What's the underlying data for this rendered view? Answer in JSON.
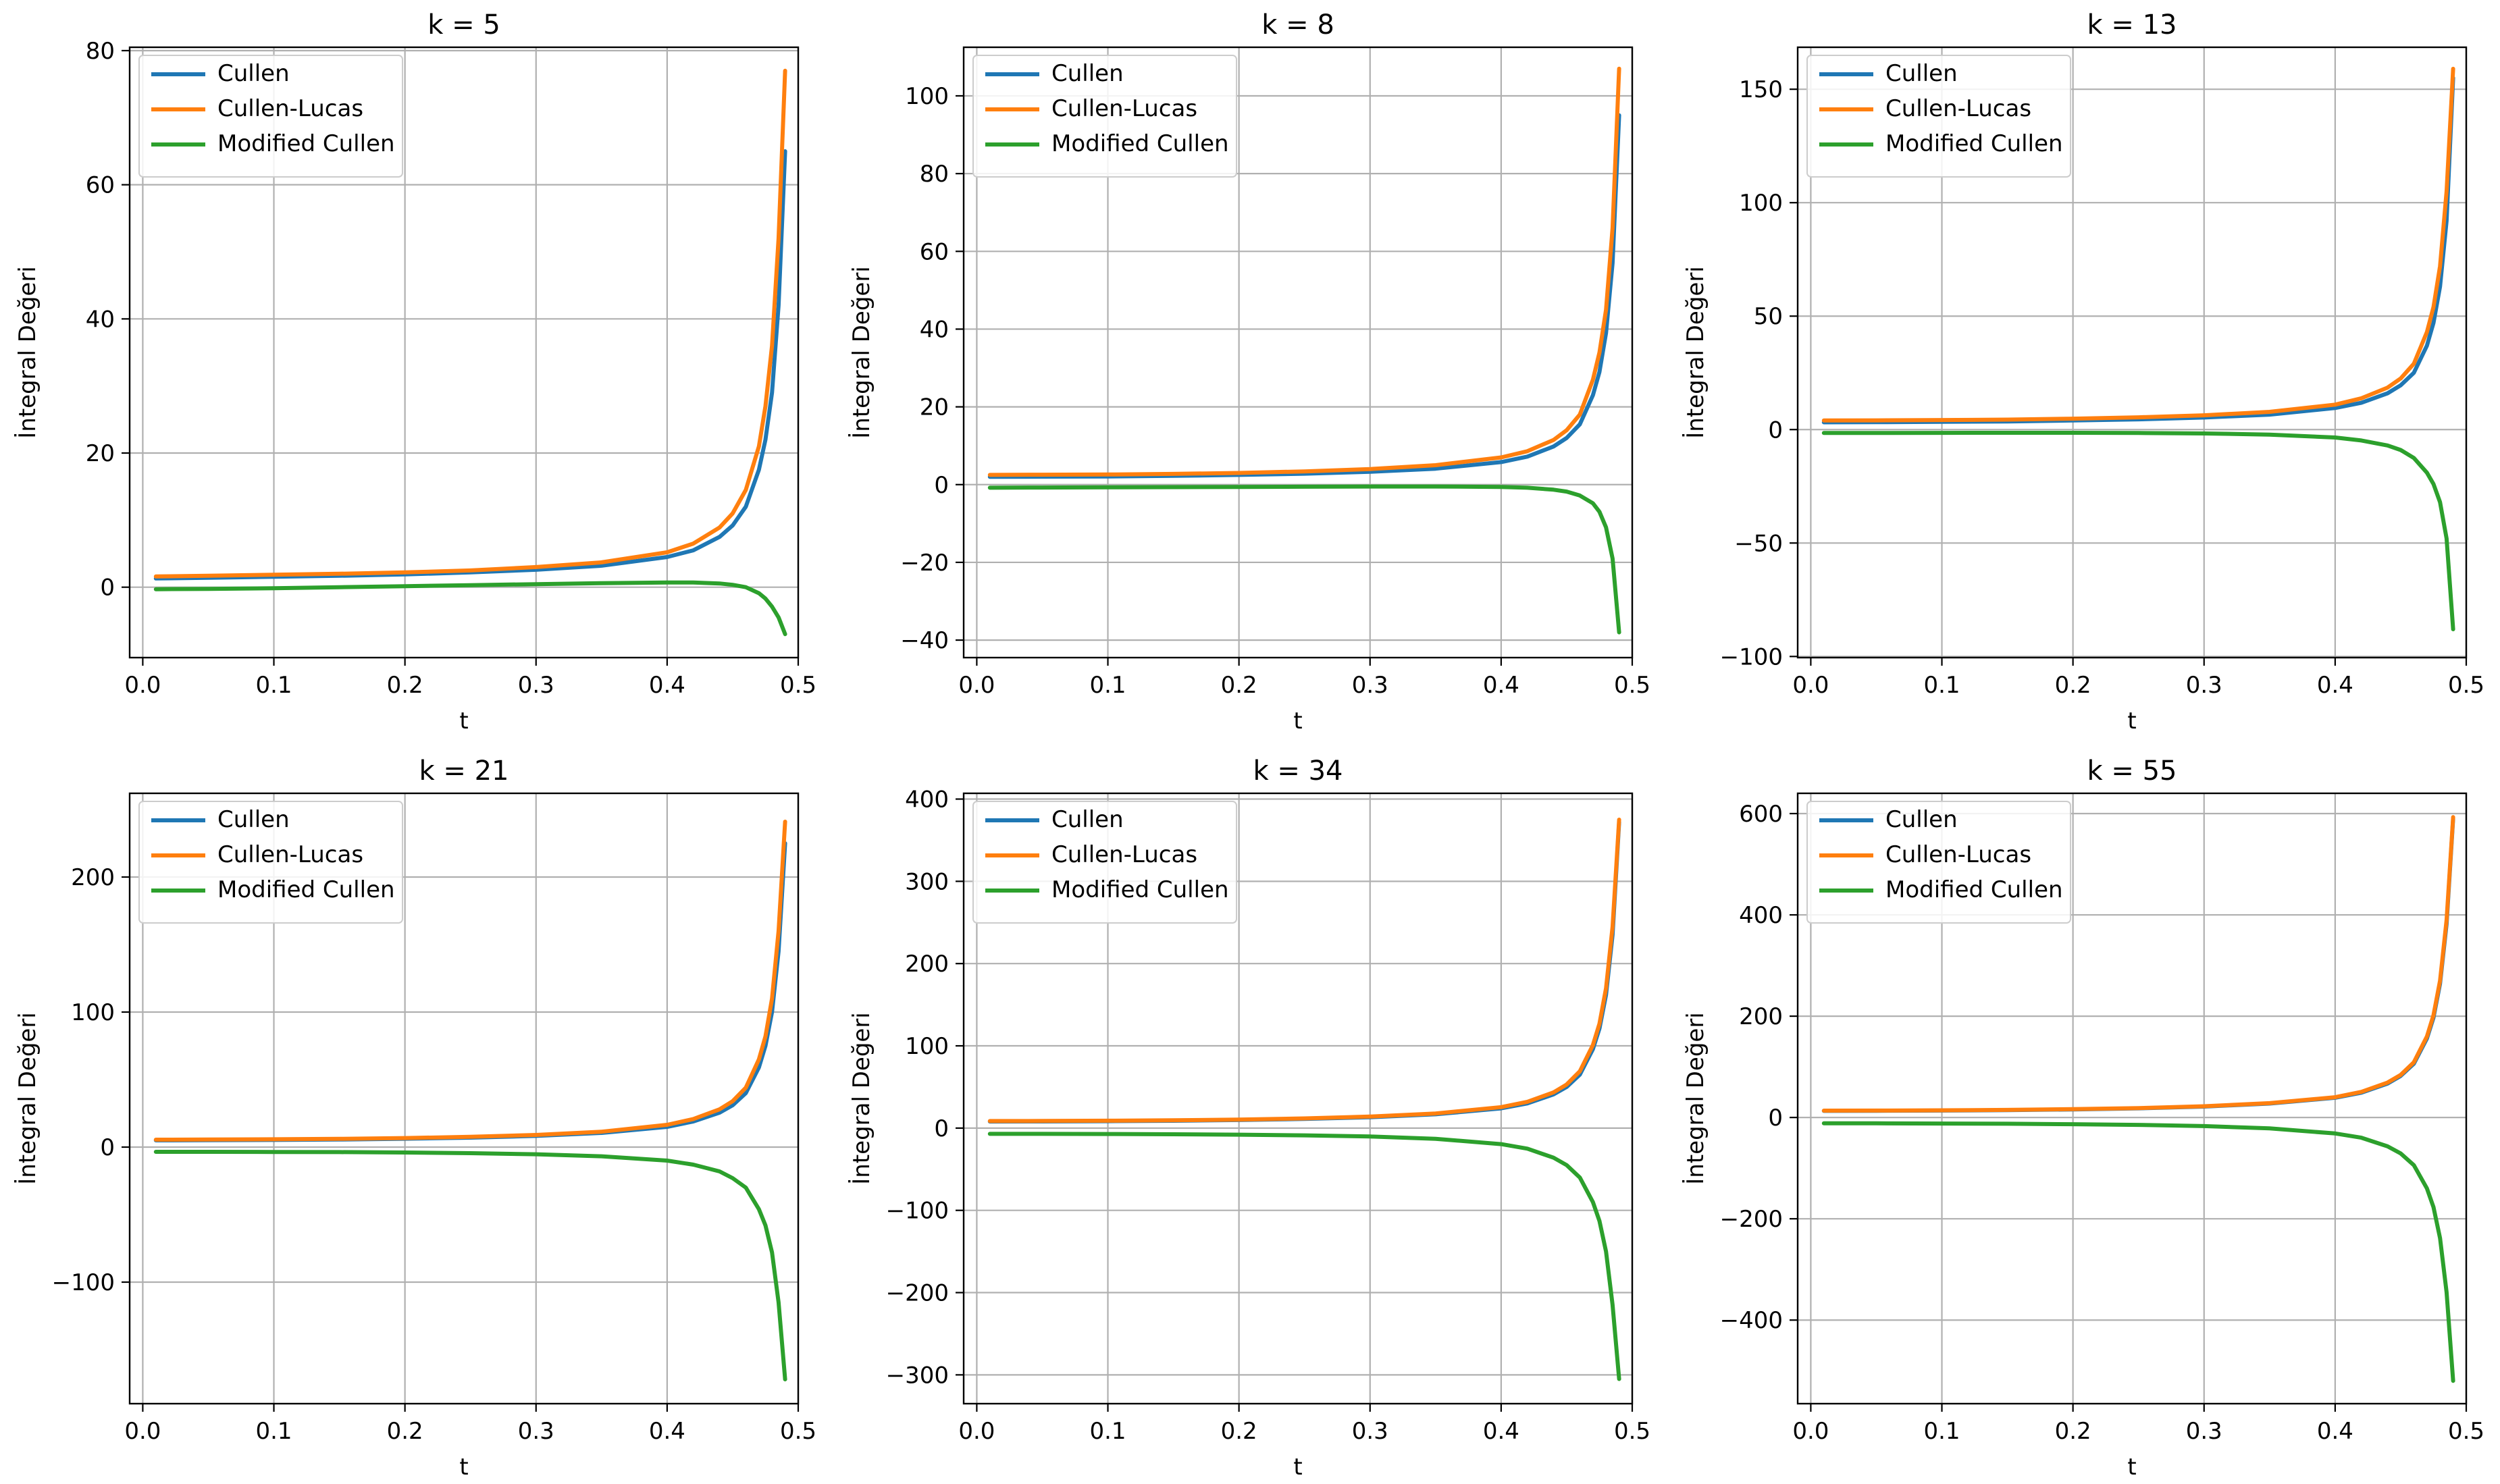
{
  "colors": {
    "Cullen": "#1f77b4",
    "Cullen-Lucas": "#ff7f0e",
    "Modified Cullen": "#2ca02c"
  },
  "chart_data": [
    {
      "type": "line",
      "title": "k = 5",
      "xlabel": "t",
      "ylabel": "İntegral Değeri",
      "xlim": [
        -0.01,
        0.5
      ],
      "ylim": [
        -10.5,
        80.5
      ],
      "xticks": [
        0.0,
        0.1,
        0.2,
        0.3,
        0.4,
        0.5
      ],
      "xtick_labels": [
        "0.0",
        "0.1",
        "0.2",
        "0.3",
        "0.4",
        "0.5"
      ],
      "yticks": [
        0,
        20,
        40,
        60,
        80
      ],
      "ytick_labels": [
        "0",
        "20",
        "40",
        "60",
        "80"
      ],
      "grid": true,
      "legend": "upper-left",
      "x": [
        0.01,
        0.05,
        0.1,
        0.15,
        0.2,
        0.25,
        0.3,
        0.35,
        0.4,
        0.42,
        0.44,
        0.45,
        0.46,
        0.47,
        0.475,
        0.48,
        0.485,
        0.49
      ],
      "series": [
        {
          "name": "Cullen",
          "values": [
            1.3,
            1.4,
            1.55,
            1.7,
            1.9,
            2.2,
            2.6,
            3.2,
            4.5,
            5.5,
            7.5,
            9.2,
            12.0,
            17.5,
            22.0,
            29.0,
            42.0,
            65.0
          ]
        },
        {
          "name": "Cullen-Lucas",
          "values": [
            1.6,
            1.7,
            1.85,
            2.0,
            2.2,
            2.5,
            3.0,
            3.7,
            5.2,
            6.5,
            8.9,
            11.0,
            14.5,
            21.0,
            27.0,
            36.0,
            52.0,
            77.0
          ]
        },
        {
          "name": "Modified Cullen",
          "values": [
            -0.3,
            -0.25,
            -0.15,
            0.0,
            0.15,
            0.3,
            0.45,
            0.6,
            0.7,
            0.7,
            0.55,
            0.35,
            0.0,
            -0.9,
            -1.7,
            -2.9,
            -4.5,
            -7.0
          ]
        }
      ]
    },
    {
      "type": "line",
      "title": "k = 8",
      "xlabel": "t",
      "ylabel": "İntegral Değeri",
      "xlim": [
        -0.01,
        0.5
      ],
      "ylim": [
        -44.5,
        112.5
      ],
      "xticks": [
        0.0,
        0.1,
        0.2,
        0.3,
        0.4,
        0.5
      ],
      "xtick_labels": [
        "0.0",
        "0.1",
        "0.2",
        "0.3",
        "0.4",
        "0.5"
      ],
      "yticks": [
        -40,
        -20,
        0,
        20,
        40,
        60,
        80,
        100
      ],
      "ytick_labels": [
        "−40",
        "−20",
        "0",
        "20",
        "40",
        "60",
        "80",
        "100"
      ],
      "grid": true,
      "legend": "upper-left",
      "x": [
        0.01,
        0.05,
        0.1,
        0.15,
        0.2,
        0.25,
        0.3,
        0.35,
        0.4,
        0.42,
        0.44,
        0.45,
        0.46,
        0.47,
        0.475,
        0.48,
        0.485,
        0.49
      ],
      "series": [
        {
          "name": "Cullen",
          "values": [
            2.0,
            2.05,
            2.1,
            2.25,
            2.5,
            2.8,
            3.3,
            4.1,
            5.8,
            7.2,
            9.8,
            12.0,
            15.5,
            23.0,
            29.0,
            39.0,
            57.0,
            95.0
          ]
        },
        {
          "name": "Cullen-Lucas",
          "values": [
            2.5,
            2.55,
            2.6,
            2.75,
            3.0,
            3.4,
            4.0,
            5.0,
            7.0,
            8.6,
            11.5,
            14.0,
            18.0,
            27.0,
            34.0,
            45.0,
            66.0,
            107.0
          ]
        },
        {
          "name": "Modified Cullen",
          "values": [
            -0.8,
            -0.75,
            -0.7,
            -0.65,
            -0.6,
            -0.55,
            -0.5,
            -0.5,
            -0.6,
            -0.8,
            -1.3,
            -1.8,
            -2.8,
            -4.8,
            -7.0,
            -11.0,
            -19.0,
            -38.0
          ]
        }
      ]
    },
    {
      "type": "line",
      "title": "k = 13",
      "xlabel": "t",
      "ylabel": "İntegral Değeri",
      "xlim": [
        -0.01,
        0.5
      ],
      "ylim": [
        -100.5,
        168.5
      ],
      "xticks": [
        0.0,
        0.1,
        0.2,
        0.3,
        0.4,
        0.5
      ],
      "xtick_labels": [
        "0.0",
        "0.1",
        "0.2",
        "0.3",
        "0.4",
        "0.5"
      ],
      "yticks": [
        -100,
        -50,
        0,
        50,
        100,
        150
      ],
      "ytick_labels": [
        "−100",
        "−50",
        "0",
        "50",
        "100",
        "150"
      ],
      "grid": true,
      "legend": "upper-left",
      "x": [
        0.01,
        0.05,
        0.1,
        0.15,
        0.2,
        0.25,
        0.3,
        0.35,
        0.4,
        0.42,
        0.44,
        0.45,
        0.46,
        0.47,
        0.475,
        0.48,
        0.485,
        0.49
      ],
      "series": [
        {
          "name": "Cullen",
          "values": [
            3.2,
            3.25,
            3.4,
            3.6,
            4.0,
            4.5,
            5.3,
            6.6,
            9.5,
            11.8,
            16.0,
            19.5,
            25.0,
            37.0,
            47.0,
            63.0,
            92.0,
            155.0
          ]
        },
        {
          "name": "Cullen-Lucas",
          "values": [
            4.0,
            4.05,
            4.2,
            4.4,
            4.8,
            5.4,
            6.3,
            7.8,
            11.0,
            13.8,
            18.5,
            22.5,
            29.0,
            43.0,
            54.0,
            72.0,
            105.0,
            159.0
          ]
        },
        {
          "name": "Modified Cullen",
          "values": [
            -1.5,
            -1.5,
            -1.45,
            -1.4,
            -1.4,
            -1.5,
            -1.7,
            -2.2,
            -3.5,
            -4.8,
            -7.0,
            -9.0,
            -12.5,
            -19.0,
            -24.0,
            -32.0,
            -48.0,
            -88.0
          ]
        }
      ]
    },
    {
      "type": "line",
      "title": "k = 21",
      "xlabel": "t",
      "ylabel": "İntegral Değeri",
      "xlim": [
        -0.01,
        0.5
      ],
      "ylim": [
        -190,
        262
      ],
      "xticks": [
        0.0,
        0.1,
        0.2,
        0.3,
        0.4,
        0.5
      ],
      "xtick_labels": [
        "0.0",
        "0.1",
        "0.2",
        "0.3",
        "0.4",
        "0.5"
      ],
      "yticks": [
        -100,
        0,
        100,
        200
      ],
      "ytick_labels": [
        "−100",
        "0",
        "100",
        "200"
      ],
      "grid": true,
      "legend": "upper-left",
      "x": [
        0.01,
        0.05,
        0.1,
        0.15,
        0.2,
        0.25,
        0.3,
        0.35,
        0.4,
        0.42,
        0.44,
        0.45,
        0.46,
        0.47,
        0.475,
        0.48,
        0.485,
        0.49
      ],
      "series": [
        {
          "name": "Cullen",
          "values": [
            5.0,
            5.1,
            5.3,
            5.6,
            6.2,
            7.0,
            8.3,
            10.5,
            15.0,
            19.0,
            25.5,
            31.0,
            40.0,
            59.0,
            75.0,
            100.0,
            145.0,
            225.0
          ]
        },
        {
          "name": "Cullen-Lucas",
          "values": [
            5.5,
            5.6,
            5.8,
            6.1,
            6.7,
            7.6,
            9.0,
            11.4,
            16.5,
            20.8,
            28.0,
            34.0,
            44.0,
            65.0,
            82.0,
            110.0,
            160.0,
            241.0
          ]
        },
        {
          "name": "Modified Cullen",
          "values": [
            -3.5,
            -3.5,
            -3.6,
            -3.7,
            -4.0,
            -4.5,
            -5.3,
            -6.8,
            -10.0,
            -13.0,
            -18.0,
            -23.0,
            -30.0,
            -46.0,
            -58.0,
            -78.0,
            -115.0,
            -172.0
          ]
        }
      ]
    },
    {
      "type": "line",
      "title": "k = 34",
      "xlabel": "t",
      "ylabel": "İntegral Değeri",
      "xlim": [
        -0.01,
        0.5
      ],
      "ylim": [
        -335,
        407
      ],
      "xticks": [
        0.0,
        0.1,
        0.2,
        0.3,
        0.4,
        0.5
      ],
      "xtick_labels": [
        "0.0",
        "0.1",
        "0.2",
        "0.3",
        "0.4",
        "0.5"
      ],
      "yticks": [
        -300,
        -200,
        -100,
        0,
        100,
        200,
        300,
        400
      ],
      "ytick_labels": [
        "−300",
        "−200",
        "−100",
        "0",
        "100",
        "200",
        "300",
        "400"
      ],
      "grid": true,
      "legend": "upper-left",
      "x": [
        0.01,
        0.05,
        0.1,
        0.15,
        0.2,
        0.25,
        0.3,
        0.35,
        0.4,
        0.42,
        0.44,
        0.45,
        0.46,
        0.47,
        0.475,
        0.48,
        0.485,
        0.49
      ],
      "series": [
        {
          "name": "Cullen",
          "values": [
            8.0,
            8.1,
            8.4,
            8.9,
            9.8,
            11.1,
            13.2,
            16.8,
            24.0,
            30.0,
            41.0,
            50.0,
            65.0,
            96.0,
            121.0,
            162.0,
            235.0,
            372.0
          ]
        },
        {
          "name": "Cullen-Lucas",
          "values": [
            8.6,
            8.7,
            9.0,
            9.5,
            10.4,
            11.8,
            14.0,
            17.8,
            25.5,
            32.0,
            43.5,
            53.0,
            69.0,
            101.0,
            127.0,
            170.0,
            245.0,
            375.0
          ]
        },
        {
          "name": "Modified Cullen",
          "values": [
            -7.0,
            -7.0,
            -7.2,
            -7.5,
            -8.0,
            -8.8,
            -10.2,
            -13.0,
            -19.5,
            -25.0,
            -36.0,
            -45.0,
            -60.0,
            -90.0,
            -113.0,
            -150.0,
            -215.0,
            -305.0
          ]
        }
      ]
    },
    {
      "type": "line",
      "title": "k = 55",
      "xlabel": "t",
      "ylabel": "İntegral Değeri",
      "xlim": [
        -0.01,
        0.5
      ],
      "ylim": [
        -565,
        640
      ],
      "xticks": [
        0.0,
        0.1,
        0.2,
        0.3,
        0.4,
        0.5
      ],
      "xtick_labels": [
        "0.0",
        "0.1",
        "0.2",
        "0.3",
        "0.4",
        "0.5"
      ],
      "yticks": [
        -400,
        -200,
        0,
        200,
        400,
        600
      ],
      "ytick_labels": [
        "−400",
        "−200",
        "0",
        "200",
        "400",
        "600"
      ],
      "grid": true,
      "legend": "upper-left",
      "x": [
        0.01,
        0.05,
        0.1,
        0.15,
        0.2,
        0.25,
        0.3,
        0.35,
        0.4,
        0.42,
        0.44,
        0.45,
        0.46,
        0.47,
        0.475,
        0.48,
        0.485,
        0.49
      ],
      "series": [
        {
          "name": "Cullen",
          "values": [
            13.0,
            13.2,
            13.7,
            14.5,
            15.9,
            18.0,
            21.5,
            27.5,
            39.0,
            49.0,
            67.0,
            82.0,
            106.0,
            156.0,
            197.0,
            264.0,
            382.0,
            590.0
          ]
        },
        {
          "name": "Cullen-Lucas",
          "values": [
            13.5,
            13.7,
            14.2,
            15.0,
            16.4,
            18.6,
            22.2,
            28.3,
            40.0,
            50.5,
            69.0,
            84.0,
            109.0,
            160.0,
            202.0,
            270.0,
            390.0,
            593.0
          ]
        },
        {
          "name": "Modified Cullen",
          "values": [
            -11.5,
            -11.6,
            -11.9,
            -12.4,
            -13.3,
            -14.6,
            -17.0,
            -21.5,
            -31.5,
            -40.0,
            -57.0,
            -71.0,
            -94.0,
            -140.0,
            -177.0,
            -238.0,
            -345.0,
            -520.0
          ]
        }
      ]
    }
  ]
}
